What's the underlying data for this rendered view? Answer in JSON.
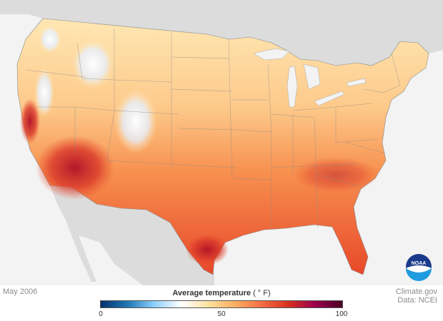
{
  "map": {
    "date": "May 2006",
    "legend": {
      "title": "Average temperature",
      "unit": "( ° F)",
      "min": 0,
      "mid": 50,
      "max": 100,
      "ticks": [
        "0",
        "50",
        "100"
      ],
      "colors": [
        "#08306b",
        "#1f78b4",
        "#8fd0ff",
        "#ffffff",
        "#ffe2a0",
        "#fdae61",
        "#f46d43",
        "#d7301f",
        "#99004d",
        "#4d0021"
      ]
    },
    "credit": {
      "line1": "Climate.gov",
      "line2": "Data: NCEI"
    },
    "logo_text": "NOAA"
  }
}
